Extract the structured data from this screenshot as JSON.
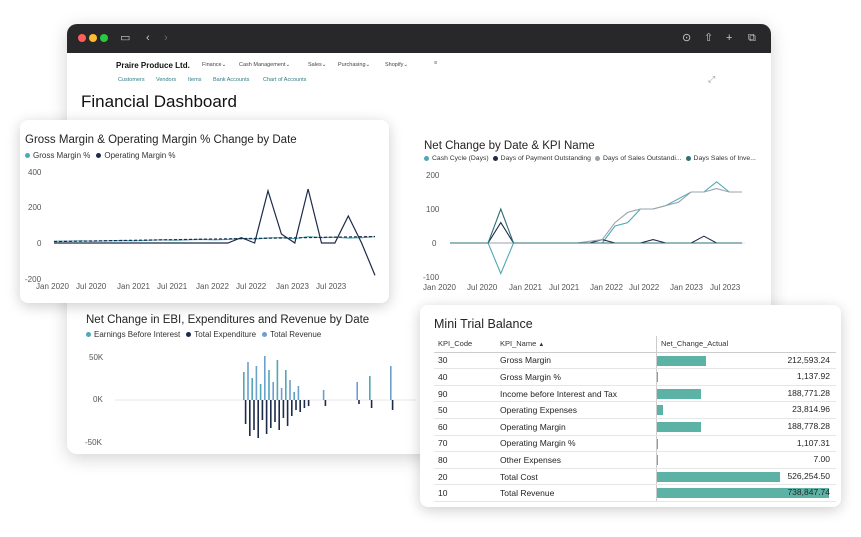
{
  "browser": {
    "company": "Praire Produce Ltd.",
    "nav": [
      "Finance",
      "Cash Management",
      "Sales",
      "Purchasing",
      "Shopify"
    ],
    "subnav": [
      "Customers",
      "Vendors",
      "Items",
      "Bank Accounts",
      "Chart of Accounts"
    ],
    "page_title": "Financial Dashboard"
  },
  "colors": {
    "teal": "#4ea8b5",
    "navy": "#1c2b4a",
    "grey": "#9aa3ad",
    "dark_teal": "#2f6f78",
    "bar": "#5cb3a5"
  },
  "margin_card": {
    "title": "Gross Margin & Operating Margin % Change by Date",
    "legend": [
      "Gross Margin %",
      "Operating Margin %"
    ],
    "y_ticks": [
      "400",
      "200",
      "0",
      "-200"
    ],
    "x_ticks": [
      "Jan 2020",
      "Jul 2020",
      "Jan 2021",
      "Jul 2021",
      "Jan 2022",
      "Jul 2022",
      "Jan 2023",
      "Jul 2023"
    ]
  },
  "net_change_card": {
    "title": "Net Change by Date & KPI Name",
    "legend": [
      "Cash Cycle (Days)",
      "Days of Payment Outstanding",
      "Days of Sales Outstandi...",
      "Days Sales of Inve..."
    ],
    "y_ticks": [
      "200",
      "100",
      "0",
      "-100"
    ],
    "x_ticks": [
      "Jan 2020",
      "Jul 2020",
      "Jan 2021",
      "Jul 2021",
      "Jan 2022",
      "Jul 2022",
      "Jan 2023",
      "Jul 2023"
    ]
  },
  "ebi_card": {
    "title": "Net Change in EBI, Expenditures and Revenue by Date",
    "legend": [
      "Earnings Before Interest",
      "Total Expenditure",
      "Total Revenue"
    ],
    "y_ticks": [
      "50K",
      "0K",
      "-50K"
    ]
  },
  "trial_balance": {
    "title": "Mini Trial Balance",
    "columns": [
      "KPI_Code",
      "KPI_Name",
      "Net_Change_Actual"
    ],
    "rows": [
      {
        "code": "30",
        "name": "Gross Margin",
        "value": "212,593.24",
        "amount": 212593.24
      },
      {
        "code": "40",
        "name": "Gross Margin %",
        "value": "1,137.92",
        "amount": 1137.92
      },
      {
        "code": "90",
        "name": "Income before Interest and Tax",
        "value": "188,771.28",
        "amount": 188771.28
      },
      {
        "code": "50",
        "name": "Operating Expenses",
        "value": "23,814.96",
        "amount": 23814.96
      },
      {
        "code": "60",
        "name": "Operating Margin",
        "value": "188,778.28",
        "amount": 188778.28
      },
      {
        "code": "70",
        "name": "Operating Margin %",
        "value": "1,107.31",
        "amount": 1107.31
      },
      {
        "code": "80",
        "name": "Other Expenses",
        "value": "7.00",
        "amount": 7.0
      },
      {
        "code": "20",
        "name": "Total Cost",
        "value": "526,254.50",
        "amount": 526254.5
      },
      {
        "code": "10",
        "name": "Total Revenue",
        "value": "738,847.74",
        "amount": 738847.74
      }
    ]
  },
  "chart_data": [
    {
      "type": "line",
      "title": "Gross Margin & Operating Margin % Change by Date",
      "ylim": [
        -200,
        400
      ],
      "series": [
        {
          "name": "Gross Margin %",
          "values": [
            10,
            10,
            12,
            10,
            12,
            14,
            12,
            15,
            18,
            16,
            18,
            20,
            18,
            20,
            25,
            22,
            28,
            30,
            24,
            35,
            30,
            32,
            28,
            30,
            35
          ]
        },
        {
          "name": "Operating Margin %",
          "values": [
            0,
            0,
            0,
            0,
            0,
            0,
            0,
            0,
            0,
            0,
            0,
            0,
            0,
            0,
            30,
            0,
            290,
            50,
            0,
            300,
            0,
            0,
            150,
            0,
            -180
          ]
        }
      ]
    },
    {
      "type": "line",
      "title": "Net Change by Date & KPI Name",
      "ylim": [
        -100,
        200
      ],
      "series": [
        {
          "name": "Cash Cycle (Days)",
          "values": [
            0,
            0,
            0,
            0,
            -90,
            0,
            0,
            0,
            0,
            0,
            0,
            0,
            0,
            50,
            60,
            100,
            100,
            110,
            130,
            150,
            150,
            180,
            150,
            150
          ]
        },
        {
          "name": "Days of Payment Outstanding",
          "values": [
            0,
            0,
            0,
            0,
            60,
            0,
            0,
            0,
            0,
            0,
            0,
            0,
            10,
            0,
            0,
            0,
            10,
            0,
            0,
            0,
            20,
            0,
            0,
            0
          ]
        },
        {
          "name": "Days of Sales Outstandi...",
          "values": [
            0,
            0,
            0,
            0,
            0,
            0,
            0,
            0,
            0,
            0,
            0,
            5,
            10,
            60,
            90,
            100,
            100,
            110,
            120,
            150,
            150,
            160,
            150,
            150
          ]
        },
        {
          "name": "Days Sales of Inve...",
          "values": [
            0,
            0,
            0,
            0,
            100,
            0,
            0,
            0,
            0,
            0,
            0,
            0,
            0,
            0,
            0,
            0,
            0,
            0,
            0,
            0,
            0,
            0,
            0,
            0
          ]
        }
      ]
    }
  ]
}
